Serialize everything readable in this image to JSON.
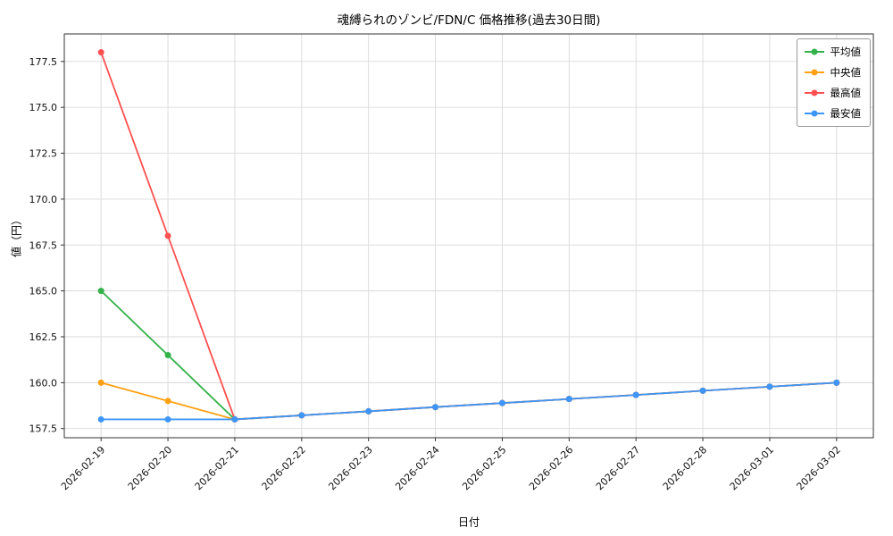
{
  "chart_data": {
    "type": "line",
    "title": "魂縛られのゾンビ/FDN/C 価格推移(過去30日間)",
    "xlabel": "日付",
    "ylabel": "値（円）",
    "categories": [
      "2026-02-19",
      "2026-02-20",
      "2026-02-21",
      "2026-02-22",
      "2026-02-23",
      "2026-02-24",
      "2026-02-25",
      "2026-02-26",
      "2026-02-27",
      "2026-02-28",
      "2026-03-01",
      "2026-03-02"
    ],
    "series": [
      {
        "name": "平均値",
        "color": "#33b249",
        "values": [
          165.0,
          161.5,
          158.0,
          158.22,
          158.44,
          158.67,
          158.89,
          159.11,
          159.33,
          159.56,
          159.78,
          160.0
        ]
      },
      {
        "name": "中央値",
        "color": "#ffa113",
        "values": [
          160.0,
          159.0,
          158.0,
          158.22,
          158.44,
          158.67,
          158.89,
          159.11,
          159.33,
          159.56,
          159.78,
          160.0
        ]
      },
      {
        "name": "最高値",
        "color": "#ff5050",
        "values": [
          178.0,
          168.0,
          158.0,
          158.22,
          158.44,
          158.67,
          158.89,
          159.11,
          159.33,
          159.56,
          159.78,
          160.0
        ]
      },
      {
        "name": "最安値",
        "color": "#3d96f7",
        "values": [
          158.0,
          158.0,
          158.0,
          158.22,
          158.44,
          158.67,
          158.89,
          159.11,
          159.33,
          159.56,
          159.78,
          160.0
        ]
      }
    ],
    "ylim": [
      157,
      179
    ],
    "yticks": [
      157.5,
      160.0,
      162.5,
      165.0,
      167.5,
      170.0,
      172.5,
      175.0,
      177.5
    ],
    "grid": true,
    "legend_position": "upper right"
  }
}
